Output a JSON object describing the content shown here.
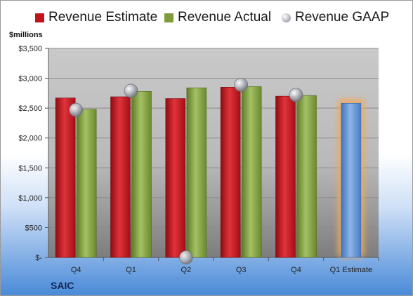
{
  "legend": {
    "estimate": "Revenue Estimate",
    "actual": "Revenue Actual",
    "gaap": "Revenue GAAP"
  },
  "units_label": "$millions",
  "company": "SAIC",
  "colors": {
    "estimate": "#c0141c",
    "actual": "#7e9c3a",
    "gaap": "#b8bcc4",
    "forecast": "#5b8fd0",
    "forecast_glow": "#f3a85a"
  },
  "chart_data": {
    "type": "bar",
    "categories": [
      "Q4",
      "Q1",
      "Q2",
      "Q3",
      "Q4",
      "Q1 Estimate"
    ],
    "series": [
      {
        "name": "Revenue Estimate",
        "values": [
          2670,
          2690,
          2660,
          2850,
          2700,
          null
        ]
      },
      {
        "name": "Revenue Actual",
        "values": [
          2480,
          2780,
          2840,
          2860,
          2710,
          null
        ]
      },
      {
        "name": "Revenue GAAP",
        "values": [
          2470,
          2790,
          0,
          2890,
          2720,
          null
        ]
      },
      {
        "name": "Q1 Estimate",
        "values": [
          null,
          null,
          null,
          null,
          null,
          2580
        ]
      }
    ],
    "y_ticks": [
      "$3,500",
      "$3,000",
      "$2,500",
      "$2,000",
      "$1,500",
      "$1,000",
      "$500",
      "$-"
    ],
    "y_tick_values": [
      3500,
      3000,
      2500,
      2000,
      1500,
      1000,
      500,
      0
    ],
    "ylim": [
      0,
      3500
    ],
    "grid": true,
    "legend_position": "top"
  }
}
